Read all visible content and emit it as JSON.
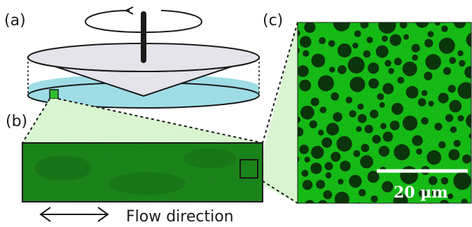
{
  "panels": {
    "a": "(a)",
    "b": "(b)",
    "c": "(c)"
  },
  "flow_label": "Flow direction",
  "scale_bar_label": "20 µm",
  "colors": {
    "cone": "#e4e4ea",
    "plate": "#9fdde6",
    "fluorescence": "#2fbf2f",
    "zoom_wedge": "#d8f5d0"
  }
}
